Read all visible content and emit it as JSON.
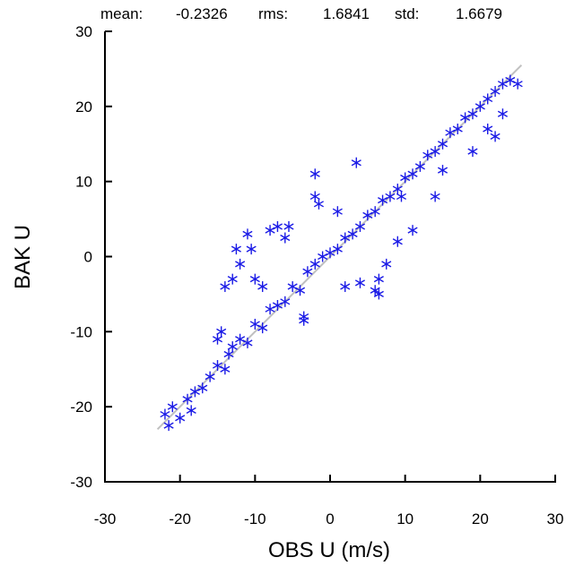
{
  "stats": {
    "mean_label": "mean:",
    "mean_value": "-0.2326",
    "rms_label": "rms:",
    "rms_value": "1.6841",
    "std_label": "std:",
    "std_value": "1.6679"
  },
  "chart_data": {
    "type": "scatter",
    "title": "",
    "xlabel": "OBS U  (m/s)",
    "ylabel": "BAK U",
    "xlim": [
      -30,
      30
    ],
    "ylim": [
      -30,
      30
    ],
    "xticks": [
      "-30",
      "-20",
      "-10",
      "0",
      "10",
      "20",
      "30"
    ],
    "yticks": [
      "-30",
      "-20",
      "-10",
      "0",
      "10",
      "20",
      "30"
    ],
    "grid": false,
    "marker": "asterisk",
    "marker_color": "#1a1ae6",
    "reference_line": {
      "from": [
        -23,
        -23
      ],
      "to": [
        25.5,
        25.5
      ],
      "color": "#c0c0c0"
    },
    "series": [
      {
        "points": [
          [
            -22,
            -21
          ],
          [
            -21.5,
            -22.5
          ],
          [
            -21,
            -20
          ],
          [
            -20,
            -21.5
          ],
          [
            -19,
            -19
          ],
          [
            -18.5,
            -20.5
          ],
          [
            -18,
            -18
          ],
          [
            -17,
            -17.5
          ],
          [
            -16,
            -16
          ],
          [
            -15,
            -14.5
          ],
          [
            -14,
            -15
          ],
          [
            -13.5,
            -13
          ],
          [
            -13,
            -12
          ],
          [
            -12,
            -11
          ],
          [
            -11,
            -11.5
          ],
          [
            -10,
            -9
          ],
          [
            -9,
            -9.5
          ],
          [
            -8,
            -7
          ],
          [
            -7,
            -6.5
          ],
          [
            -6,
            -6
          ],
          [
            -5,
            -4
          ],
          [
            -4,
            -4.5
          ],
          [
            -3,
            -2
          ],
          [
            -2,
            -1
          ],
          [
            -1,
            0
          ],
          [
            0,
            0.5
          ],
          [
            1,
            1
          ],
          [
            2,
            2.5
          ],
          [
            3,
            3
          ],
          [
            4,
            4
          ],
          [
            5,
            5.5
          ],
          [
            6,
            6
          ],
          [
            7,
            7.5
          ],
          [
            8,
            8
          ],
          [
            9,
            9
          ],
          [
            10,
            10.5
          ],
          [
            11,
            11
          ],
          [
            12,
            12
          ],
          [
            13,
            13.5
          ],
          [
            14,
            14
          ],
          [
            15,
            15
          ],
          [
            16,
            16.5
          ],
          [
            17,
            17
          ],
          [
            18,
            18.5
          ],
          [
            19,
            19
          ],
          [
            20,
            20
          ],
          [
            21,
            21
          ],
          [
            22,
            22
          ],
          [
            23,
            23
          ],
          [
            24,
            23.5
          ],
          [
            25,
            23
          ],
          [
            -13,
            -3
          ],
          [
            -12.5,
            1
          ],
          [
            -12,
            -1
          ],
          [
            -11,
            3
          ],
          [
            -10.5,
            1
          ],
          [
            -10,
            -3
          ],
          [
            -9,
            -4
          ],
          [
            -8,
            3.5
          ],
          [
            -7,
            4
          ],
          [
            -6,
            2.5
          ],
          [
            -5.5,
            4
          ],
          [
            -14,
            -4
          ],
          [
            -14.5,
            -10
          ],
          [
            -15,
            -11
          ],
          [
            -3.5,
            -8
          ],
          [
            -3.5,
            -8.5
          ],
          [
            -2,
            11
          ],
          [
            -1.5,
            7
          ],
          [
            -2,
            8
          ],
          [
            1,
            6
          ],
          [
            3.5,
            12.5
          ],
          [
            6.5,
            -3
          ],
          [
            6,
            -4.5
          ],
          [
            4,
            -3.5
          ],
          [
            2,
            -4
          ],
          [
            6.5,
            -5
          ],
          [
            7.5,
            -1
          ],
          [
            9,
            2
          ],
          [
            11,
            3.5
          ],
          [
            9.5,
            8
          ],
          [
            14,
            8
          ],
          [
            15,
            11.5
          ],
          [
            19,
            14
          ],
          [
            21,
            17
          ],
          [
            22,
            16
          ],
          [
            23,
            19
          ]
        ]
      }
    ]
  }
}
